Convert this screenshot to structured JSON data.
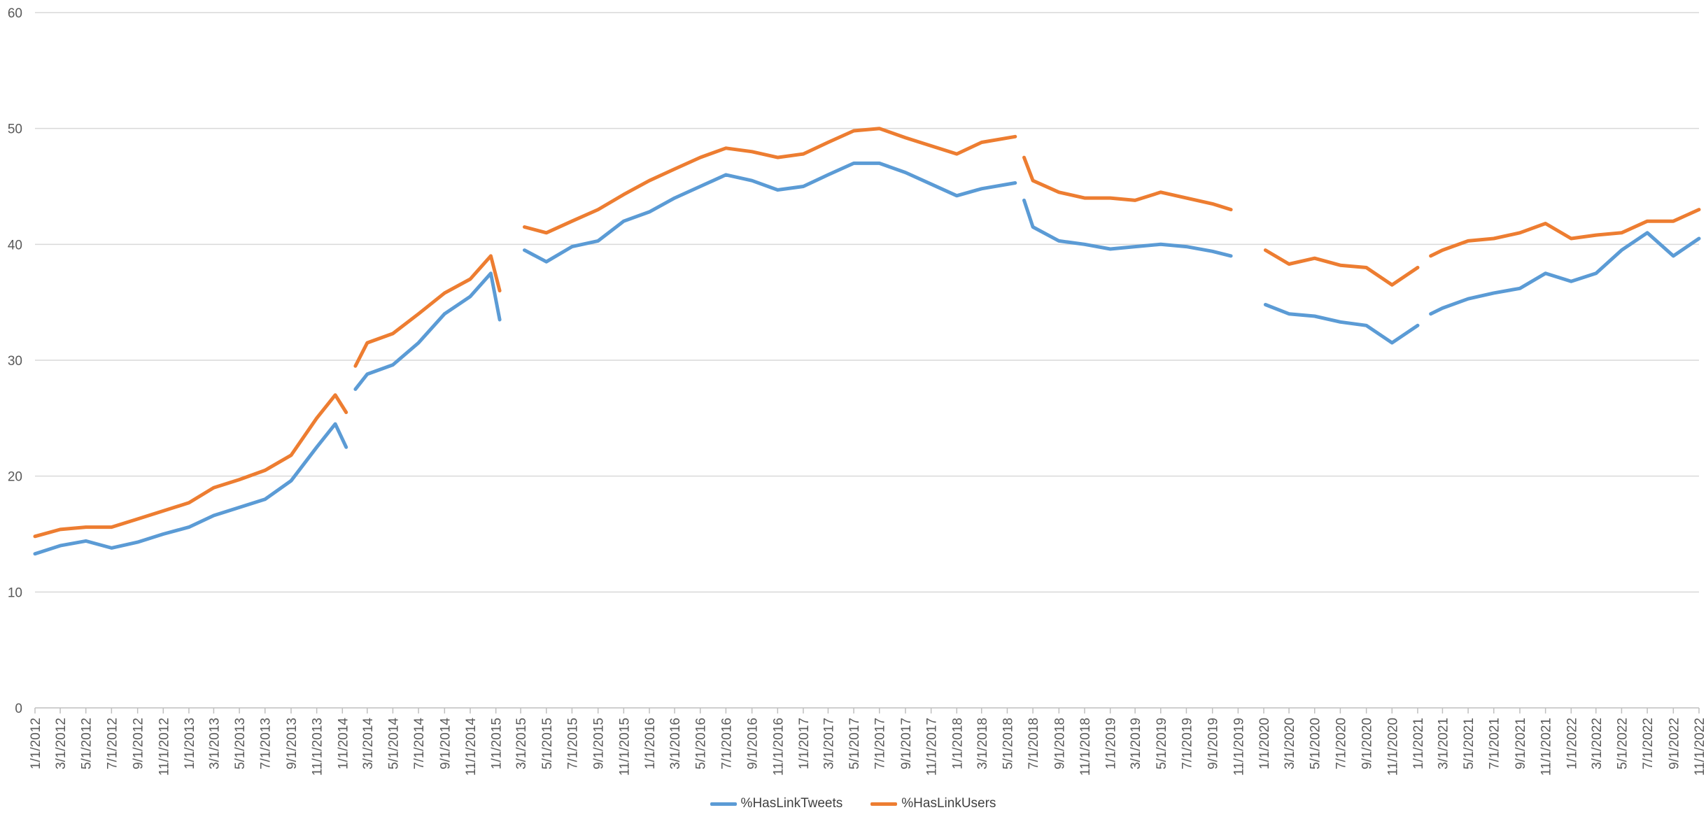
{
  "chart_data": {
    "type": "line",
    "title": "",
    "xlabel": "",
    "ylabel": "",
    "ylim": [
      0,
      60
    ],
    "yticks": [
      "0",
      "10",
      "20",
      "30",
      "40",
      "50",
      "60"
    ],
    "grid": "horizontal",
    "legend_position": "bottom",
    "x_tick_labels": [
      "1/1/2012",
      "3/1/2012",
      "5/1/2012",
      "7/1/2012",
      "9/1/2012",
      "11/1/2012",
      "1/1/2013",
      "3/1/2013",
      "5/1/2013",
      "7/1/2013",
      "9/1/2013",
      "11/1/2013",
      "1/1/2014",
      "3/1/2014",
      "5/1/2014",
      "7/1/2014",
      "9/1/2014",
      "11/1/2014",
      "1/1/2015",
      "3/1/2015",
      "5/1/2015",
      "7/1/2015",
      "9/1/2015",
      "11/1/2015",
      "1/1/2016",
      "3/1/2016",
      "5/1/2016",
      "7/1/2016",
      "9/1/2016",
      "11/1/2016",
      "1/1/2017",
      "3/1/2017",
      "5/1/2017",
      "7/1/2017",
      "9/1/2017",
      "11/1/2017",
      "1/1/2018",
      "3/1/2018",
      "5/1/2018",
      "7/1/2018",
      "9/1/2018",
      "11/1/2018",
      "1/1/2019",
      "3/1/2019",
      "5/1/2019",
      "7/1/2019",
      "9/1/2019",
      "11/1/2019",
      "1/1/2020",
      "3/1/2020",
      "5/1/2020",
      "7/1/2020",
      "9/1/2020",
      "11/1/2020",
      "1/1/2021",
      "3/1/2021",
      "5/1/2021",
      "7/1/2021",
      "9/1/2021",
      "11/1/2021",
      "1/1/2022",
      "3/1/2022",
      "5/1/2022",
      "7/1/2022",
      "9/1/2022",
      "11/1/2022"
    ],
    "series": [
      {
        "name": "%HasLinkTweets",
        "color": "#5B9BD5",
        "segments": [
          {
            "x": [
              "1/1/2012",
              "3/1/2012",
              "5/1/2012",
              "7/1/2012",
              "9/1/2012",
              "11/1/2012",
              "1/1/2013",
              "3/1/2013",
              "5/1/2013",
              "7/1/2013",
              "9/1/2013",
              "11/1/2013",
              "12/15/2013",
              "1/10/2014"
            ],
            "y": [
              13.3,
              14.0,
              14.4,
              13.8,
              14.3,
              15.0,
              15.6,
              16.6,
              17.3,
              18.0,
              19.6,
              22.5,
              24.5,
              22.5
            ]
          },
          {
            "x": [
              "2/1/2014",
              "3/1/2014",
              "5/1/2014",
              "7/1/2014",
              "9/1/2014",
              "11/1/2014",
              "12/20/2014",
              "1/10/2015"
            ],
            "y": [
              27.5,
              28.8,
              29.6,
              31.5,
              34.0,
              35.5,
              37.5,
              33.5
            ]
          },
          {
            "x": [
              "3/10/2015",
              "5/1/2015",
              "7/1/2015",
              "9/1/2015",
              "11/1/2015",
              "1/1/2016",
              "3/1/2016",
              "5/1/2016",
              "7/1/2016",
              "9/1/2016",
              "11/1/2016",
              "1/1/2017",
              "3/1/2017",
              "5/1/2017",
              "7/1/2017",
              "9/1/2017",
              "11/1/2017",
              "1/1/2018",
              "3/1/2018",
              "5/20/2018"
            ],
            "y": [
              39.5,
              38.5,
              39.8,
              40.3,
              42.0,
              42.8,
              44.0,
              45.0,
              46.0,
              45.5,
              44.7,
              45.0,
              46.0,
              47.0,
              47.0,
              46.2,
              45.2,
              44.2,
              44.8,
              45.3
            ]
          },
          {
            "x": [
              "6/10/2018",
              "7/1/2018",
              "9/1/2018",
              "11/1/2018",
              "1/1/2019",
              "3/1/2019",
              "5/1/2019",
              "7/1/2019",
              "9/1/2019",
              "10/15/2019"
            ],
            "y": [
              43.8,
              41.5,
              40.3,
              40.0,
              39.6,
              39.8,
              40.0,
              39.8,
              39.4,
              39.0
            ]
          },
          {
            "x": [
              "1/5/2020",
              "3/1/2020",
              "5/1/2020",
              "7/1/2020",
              "9/1/2020",
              "11/1/2020",
              "1/1/2021"
            ],
            "y": [
              34.8,
              34.0,
              33.8,
              33.3,
              33.0,
              31.5,
              33.0
            ]
          },
          {
            "x": [
              "2/1/2021",
              "3/1/2021",
              "5/1/2021",
              "7/1/2021",
              "9/1/2021",
              "11/1/2021",
              "1/1/2022",
              "3/1/2022",
              "5/1/2022",
              "7/1/2022",
              "9/1/2022",
              "11/1/2022"
            ],
            "y": [
              34.0,
              34.5,
              35.3,
              35.8,
              36.2,
              37.5,
              36.8,
              37.5,
              39.5,
              41.0,
              39.0,
              40.5
            ]
          }
        ]
      },
      {
        "name": "%HasLinkUsers",
        "color": "#ED7D31",
        "segments": [
          {
            "x": [
              "1/1/2012",
              "3/1/2012",
              "5/1/2012",
              "7/1/2012",
              "9/1/2012",
              "11/1/2012",
              "1/1/2013",
              "3/1/2013",
              "5/1/2013",
              "7/1/2013",
              "9/1/2013",
              "11/1/2013",
              "12/15/2013",
              "1/10/2014"
            ],
            "y": [
              14.8,
              15.4,
              15.6,
              15.6,
              16.3,
              17.0,
              17.7,
              19.0,
              19.7,
              20.5,
              21.8,
              25.0,
              27.0,
              25.5
            ]
          },
          {
            "x": [
              "2/1/2014",
              "3/1/2014",
              "5/1/2014",
              "7/1/2014",
              "9/1/2014",
              "11/1/2014",
              "12/20/2014",
              "1/10/2015"
            ],
            "y": [
              29.5,
              31.5,
              32.3,
              34.0,
              35.8,
              37.0,
              39.0,
              36.0
            ]
          },
          {
            "x": [
              "3/10/2015",
              "5/1/2015",
              "7/1/2015",
              "9/1/2015",
              "11/1/2015",
              "1/1/2016",
              "3/1/2016",
              "5/1/2016",
              "7/1/2016",
              "9/1/2016",
              "11/1/2016",
              "1/1/2017",
              "3/1/2017",
              "5/1/2017",
              "7/1/2017",
              "9/1/2017",
              "11/1/2017",
              "1/1/2018",
              "3/1/2018",
              "5/20/2018"
            ],
            "y": [
              41.5,
              41.0,
              42.0,
              43.0,
              44.3,
              45.5,
              46.5,
              47.5,
              48.3,
              48.0,
              47.5,
              47.8,
              48.8,
              49.8,
              50.0,
              49.2,
              48.5,
              47.8,
              48.8,
              49.3
            ]
          },
          {
            "x": [
              "6/10/2018",
              "7/1/2018",
              "9/1/2018",
              "11/1/2018",
              "1/1/2019",
              "3/1/2019",
              "5/1/2019",
              "7/1/2019",
              "9/1/2019",
              "10/15/2019"
            ],
            "y": [
              47.5,
              45.5,
              44.5,
              44.0,
              44.0,
              43.8,
              44.5,
              44.0,
              43.5,
              43.0
            ]
          },
          {
            "x": [
              "1/5/2020",
              "3/1/2020",
              "5/1/2020",
              "7/1/2020",
              "9/1/2020",
              "11/1/2020",
              "1/1/2021"
            ],
            "y": [
              39.5,
              38.3,
              38.8,
              38.2,
              38.0,
              36.5,
              38.0
            ]
          },
          {
            "x": [
              "2/1/2021",
              "3/1/2021",
              "5/1/2021",
              "7/1/2021",
              "9/1/2021",
              "11/1/2021",
              "1/1/2022",
              "3/1/2022",
              "5/1/2022",
              "7/1/2022",
              "9/1/2022",
              "11/1/2022"
            ],
            "y": [
              39.0,
              39.5,
              40.3,
              40.5,
              41.0,
              41.8,
              40.5,
              40.8,
              41.0,
              42.0,
              42.0,
              43.0
            ]
          }
        ]
      }
    ]
  }
}
